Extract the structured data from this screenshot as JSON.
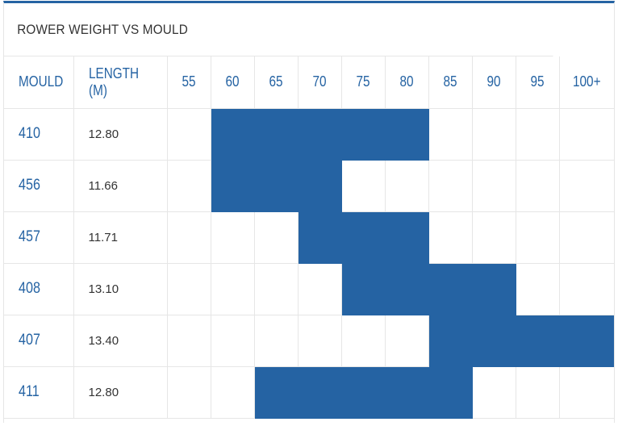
{
  "chart_data": {
    "type": "table",
    "title": "ROWER WEIGHT VS MOULD",
    "columns": [
      "MOULD",
      "LENGTH (M)"
    ],
    "weights": [
      "55",
      "60",
      "65",
      "70",
      "75",
      "80",
      "85",
      "90",
      "95",
      "100+"
    ],
    "rows": [
      {
        "mould": "410",
        "length": "12.80",
        "range": [
          "60",
          "80"
        ]
      },
      {
        "mould": "456",
        "length": "11.66",
        "range": [
          "60",
          "70"
        ]
      },
      {
        "mould": "457",
        "length": "11.71",
        "range": [
          "70",
          "80"
        ]
      },
      {
        "mould": "408",
        "length": "13.10",
        "range": [
          "75",
          "90"
        ]
      },
      {
        "mould": "407",
        "length": "13.40",
        "range": [
          "85",
          "100+"
        ]
      },
      {
        "mould": "411",
        "length": "12.80",
        "range": [
          "65",
          "85"
        ]
      }
    ],
    "highlight_color": "#2563a3"
  }
}
